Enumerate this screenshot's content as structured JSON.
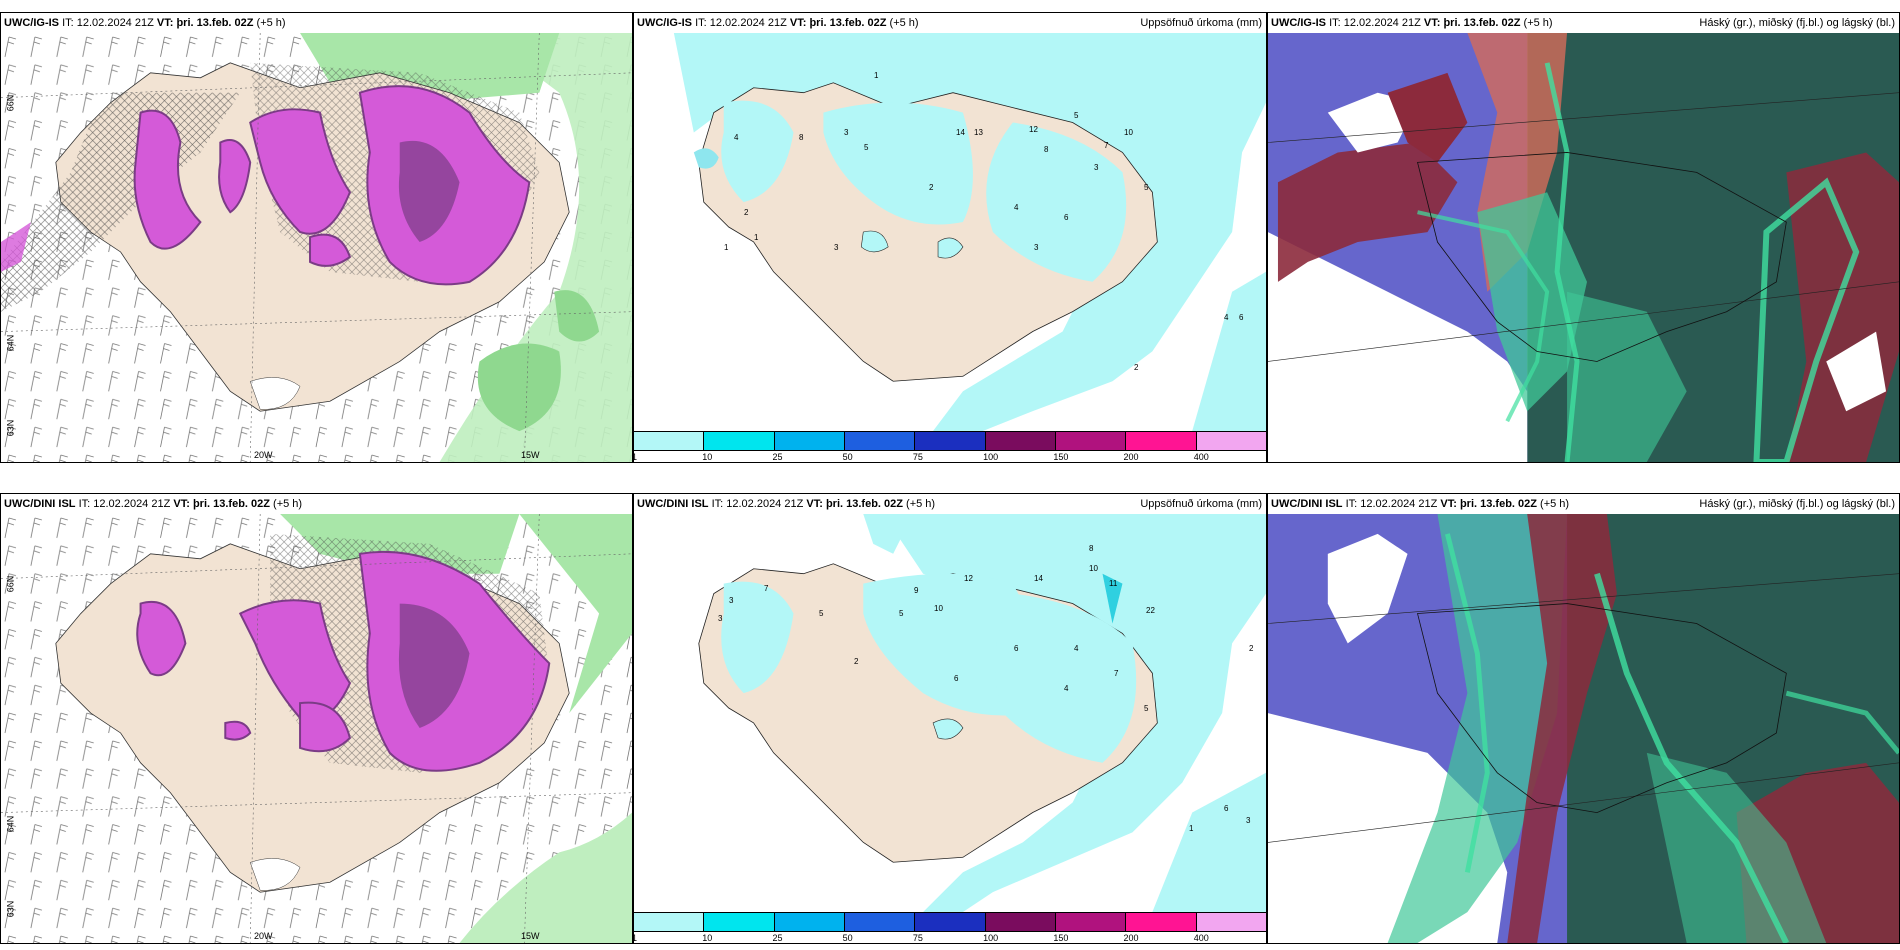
{
  "panels": [
    {
      "id": "r1c1",
      "title_model": "UWC/IG-IS",
      "it_label": "IT:",
      "it_value": "12.02.2024 21Z",
      "vt_label": "VT:",
      "vt_value": "þri. 13.feb. 02Z",
      "lead": "(+5 h)",
      "right": ""
    },
    {
      "id": "r1c2",
      "title_model": "UWC/IG-IS",
      "it_label": "IT:",
      "it_value": "12.02.2024 21Z",
      "vt_label": "VT:",
      "vt_value": "þri. 13.feb. 02Z",
      "lead": "(+5 h)",
      "right": "Uppsöfnuð úrkoma (mm)"
    },
    {
      "id": "r1c3",
      "title_model": "UWC/IG-IS",
      "it_label": "IT:",
      "it_value": "12.02.2024 21Z",
      "vt_label": "VT:",
      "vt_value": "þri. 13.feb. 02Z",
      "lead": "(+5 h)",
      "right": "Háský (gr.), miðský (fj.bl.) og lágský (bl.)"
    },
    {
      "id": "r2c1",
      "title_model": "UWC/DINI ISL",
      "it_label": "IT:",
      "it_value": "12.02.2024 21Z",
      "vt_label": "VT:",
      "vt_value": "þri. 13.feb. 02Z",
      "lead": "(+5 h)",
      "right": ""
    },
    {
      "id": "r2c2",
      "title_model": "UWC/DINI ISL",
      "it_label": "IT:",
      "it_value": "12.02.2024 21Z",
      "vt_label": "VT:",
      "vt_value": "þri. 13.feb. 02Z",
      "lead": "(+5 h)",
      "right": "Uppsöfnuð úrkoma (mm)"
    },
    {
      "id": "r2c3",
      "title_model": "UWC/DINI ISL",
      "it_label": "IT:",
      "it_value": "12.02.2024 21Z",
      "vt_label": "VT:",
      "vt_value": "þri. 13.feb. 02Z",
      "lead": "(+5 h)",
      "right": "Háský (gr.), miðský (fj.bl.) og lágský (bl.)"
    }
  ],
  "grid_labels": {
    "lon_20w": "20W",
    "lon_15w": "15W",
    "lat_66n": "66N",
    "lat_64n": "64N",
    "lat_63n": "63N"
  },
  "legend": {
    "ticks": [
      "1",
      "10",
      "25",
      "50",
      "75",
      "100",
      "150",
      "200",
      "400"
    ],
    "colors": [
      "#b3f7f7",
      "#00e5ee",
      "#00b2ee",
      "#1e5fe0",
      "#1b2fbf",
      "#7a0c5e",
      "#b0127e",
      "#ff1493",
      "#f2a6f0"
    ]
  },
  "precip_labels_ig": [
    "1",
    "4",
    "3",
    "5",
    "2",
    "2",
    "1",
    "3",
    "4",
    "14",
    "13",
    "12",
    "5",
    "8",
    "7",
    "10",
    "3",
    "6",
    "5",
    "1",
    "3",
    "4",
    "2",
    "6",
    "8"
  ],
  "precip_labels_dini": [
    "7",
    "3",
    "5",
    "10",
    "12",
    "14",
    "8",
    "9",
    "11",
    "10",
    "22",
    "5",
    "4",
    "6",
    "2",
    "3",
    "4",
    "6",
    "7",
    "5",
    "1",
    "2",
    "6",
    "3"
  ],
  "colors": {
    "land": "#f2e3d3",
    "snow_purple": "#d45ad8",
    "snow_dark": "#7b3c86",
    "rain_green": "#a8e6a8",
    "sea_precip": "#b3f7f7",
    "cloud_high": "#2a5a52",
    "cloud_mid": "#6666cc",
    "cloud_low": "#8c2a3c"
  }
}
